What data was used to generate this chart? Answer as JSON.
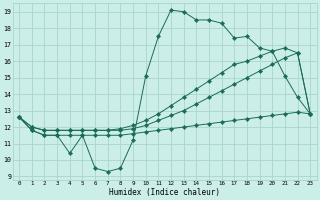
{
  "xlabel": "Humidex (Indice chaleur)",
  "bg_color": "#cceee8",
  "grid_color": "#aad4ce",
  "line_color": "#1a6b5a",
  "xlim": [
    -0.5,
    23.5
  ],
  "ylim": [
    8.8,
    19.5
  ],
  "xticks": [
    0,
    1,
    2,
    3,
    4,
    5,
    6,
    7,
    8,
    9,
    10,
    11,
    12,
    13,
    14,
    15,
    16,
    17,
    18,
    19,
    20,
    21,
    22,
    23
  ],
  "yticks": [
    9,
    10,
    11,
    12,
    13,
    14,
    15,
    16,
    17,
    18,
    19
  ],
  "series1": [
    12.6,
    11.8,
    11.5,
    11.5,
    10.4,
    11.5,
    9.5,
    9.3,
    9.5,
    11.2,
    15.1,
    17.5,
    19.1,
    19.0,
    18.5,
    18.5,
    18.3,
    17.4,
    17.5,
    16.8,
    16.6,
    15.1,
    13.8,
    12.8
  ],
  "series2": [
    12.6,
    12.0,
    11.8,
    11.8,
    11.8,
    11.8,
    11.8,
    11.8,
    11.8,
    11.9,
    12.1,
    12.4,
    12.7,
    13.0,
    13.4,
    13.8,
    14.2,
    14.6,
    15.0,
    15.4,
    15.8,
    16.2,
    16.5,
    12.8
  ],
  "series3": [
    12.6,
    12.0,
    11.8,
    11.8,
    11.8,
    11.8,
    11.8,
    11.8,
    11.9,
    12.1,
    12.4,
    12.8,
    13.3,
    13.8,
    14.3,
    14.8,
    15.3,
    15.8,
    16.0,
    16.3,
    16.6,
    16.8,
    16.5,
    12.8
  ],
  "series4": [
    12.6,
    11.8,
    11.5,
    11.5,
    11.5,
    11.5,
    11.5,
    11.5,
    11.5,
    11.6,
    11.7,
    11.8,
    11.9,
    12.0,
    12.1,
    12.2,
    12.3,
    12.4,
    12.5,
    12.6,
    12.7,
    12.8,
    12.9,
    12.8
  ]
}
